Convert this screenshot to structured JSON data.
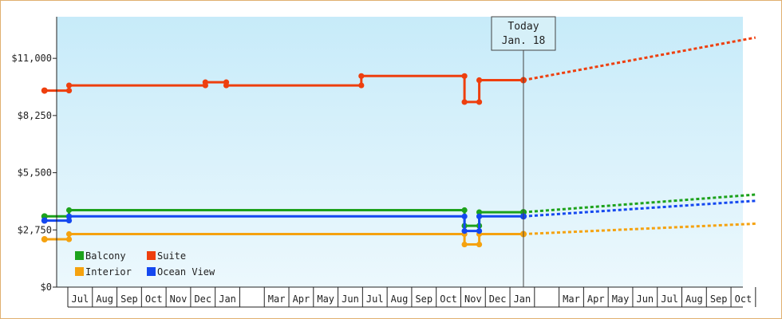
{
  "chart_data": {
    "type": "line",
    "title": "",
    "xlabel": "",
    "ylabel": "",
    "ylim": [
      0,
      13000
    ],
    "grid": false,
    "legend_position": "bottom-left",
    "y_ticks": [
      {
        "value": 0,
        "label": "$0"
      },
      {
        "value": 2750,
        "label": "$2,750"
      },
      {
        "value": 5500,
        "label": "$5,500"
      },
      {
        "value": 8250,
        "label": "$8,250"
      },
      {
        "value": 11000,
        "label": "$11,000"
      }
    ],
    "x_range_months": [
      0,
      28
    ],
    "month_ticks": [
      {
        "label": "Jul",
        "index": 0
      },
      {
        "label": "Aug",
        "index": 1
      },
      {
        "label": "Sep",
        "index": 2
      },
      {
        "label": "Oct",
        "index": 3
      },
      {
        "label": "Nov",
        "index": 4
      },
      {
        "label": "Dec",
        "index": 5
      },
      {
        "label": "Jan",
        "index": 6
      },
      {
        "label": "",
        "index": 7
      },
      {
        "label": "Mar",
        "index": 8
      },
      {
        "label": "Apr",
        "index": 9
      },
      {
        "label": "May",
        "index": 10
      },
      {
        "label": "Jun",
        "index": 11
      },
      {
        "label": "Jul",
        "index": 12
      },
      {
        "label": "Aug",
        "index": 13
      },
      {
        "label": "Sep",
        "index": 14
      },
      {
        "label": "Oct",
        "index": 15
      },
      {
        "label": "Nov",
        "index": 16
      },
      {
        "label": "Dec",
        "index": 17
      },
      {
        "label": "Jan",
        "index": 18
      },
      {
        "label": "",
        "index": 19
      },
      {
        "label": "Mar",
        "index": 20
      },
      {
        "label": "Apr",
        "index": 21
      },
      {
        "label": "May",
        "index": 22
      },
      {
        "label": "Jun",
        "index": 23
      },
      {
        "label": "Jul",
        "index": 24
      },
      {
        "label": "Aug",
        "index": 25
      },
      {
        "label": "Sep",
        "index": 26
      },
      {
        "label": "Oct",
        "index": 27
      }
    ],
    "today": {
      "line1": "Today",
      "line2": "Jan. 18",
      "x": 18.55
    },
    "series": [
      {
        "name": "Suite",
        "color": "#ee3f0e",
        "points": [
          [
            -0.95,
            9450
          ],
          [
            0.05,
            9450
          ],
          [
            0.05,
            9700
          ],
          [
            5.6,
            9700
          ],
          [
            5.6,
            9850
          ],
          [
            6.45,
            9850
          ],
          [
            6.45,
            9700
          ],
          [
            11.95,
            9700
          ],
          [
            11.95,
            10150
          ],
          [
            16.15,
            10150
          ],
          [
            16.15,
            8900
          ],
          [
            16.75,
            8900
          ],
          [
            16.75,
            9950
          ],
          [
            18.55,
            9950
          ]
        ],
        "projection": [
          [
            18.55,
            9950
          ],
          [
            28,
            12000
          ]
        ]
      },
      {
        "name": "Balcony",
        "color": "#1ca21c",
        "points": [
          [
            -0.95,
            3400
          ],
          [
            0.05,
            3400
          ],
          [
            0.05,
            3700
          ],
          [
            16.15,
            3700
          ],
          [
            16.15,
            2950
          ],
          [
            16.75,
            2950
          ],
          [
            16.75,
            3600
          ],
          [
            18.55,
            3600
          ]
        ],
        "projection": [
          [
            18.55,
            3600
          ],
          [
            28,
            4450
          ]
        ]
      },
      {
        "name": "Interior",
        "color": "#f5a20f",
        "points": [
          [
            -0.95,
            2300
          ],
          [
            0.05,
            2300
          ],
          [
            0.05,
            2550
          ],
          [
            16.15,
            2550
          ],
          [
            16.15,
            2050
          ],
          [
            16.75,
            2050
          ],
          [
            16.75,
            2550
          ],
          [
            18.55,
            2550
          ]
        ],
        "projection": [
          [
            18.55,
            2550
          ],
          [
            28,
            3050
          ]
        ]
      },
      {
        "name": "Ocean View",
        "color": "#1448f0",
        "points": [
          [
            -0.95,
            3200
          ],
          [
            0.05,
            3200
          ],
          [
            0.05,
            3400
          ],
          [
            16.15,
            3400
          ],
          [
            16.15,
            2700
          ],
          [
            16.75,
            2700
          ],
          [
            16.75,
            3400
          ],
          [
            18.55,
            3400
          ]
        ],
        "projection": [
          [
            18.55,
            3400
          ],
          [
            28,
            4150
          ]
        ]
      }
    ],
    "legend": [
      {
        "name": "Balcony",
        "color": "#1ca21c",
        "col": 0,
        "row": 0
      },
      {
        "name": "Suite",
        "color": "#ee3f0e",
        "col": 1,
        "row": 0
      },
      {
        "name": "Interior",
        "color": "#f5a20f",
        "col": 0,
        "row": 1
      },
      {
        "name": "Ocean View",
        "color": "#1448f0",
        "col": 1,
        "row": 1
      }
    ]
  }
}
